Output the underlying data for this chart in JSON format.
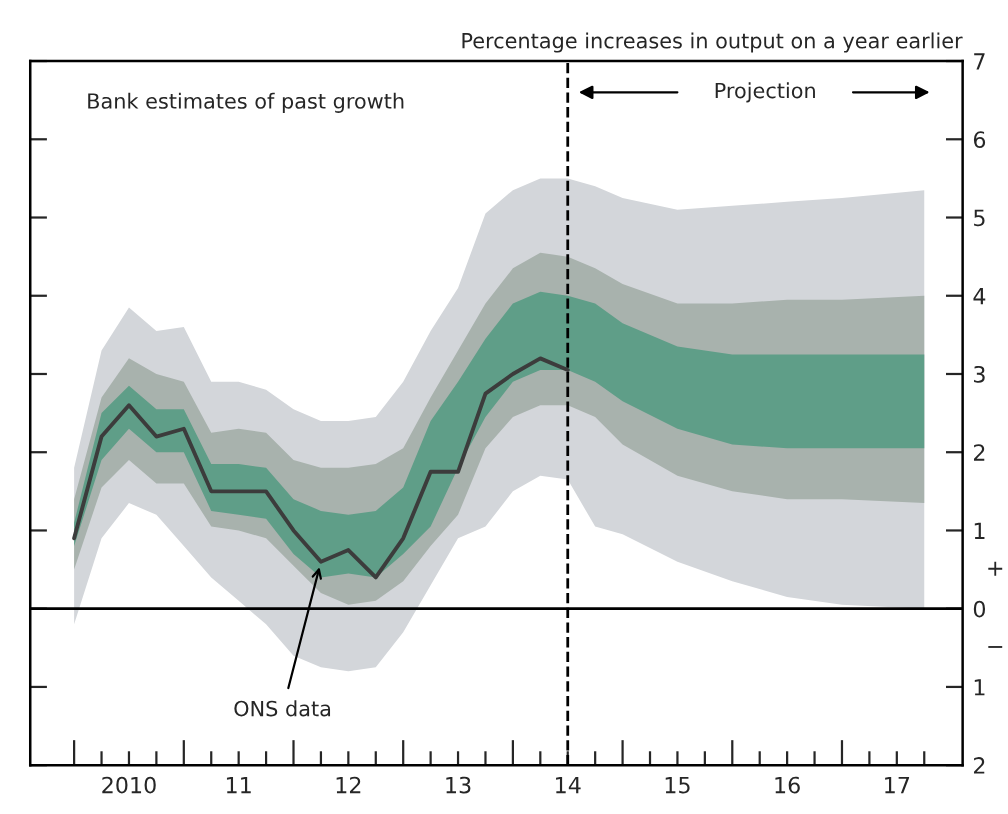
{
  "chart_data": {
    "type": "area",
    "ylabel": "Percentage increases in output on a year earlier",
    "annotations": [
      "Bank estimates of past growth",
      "Projection",
      {
        "text": "ONS data",
        "x": 2011.75,
        "y": 0.6
      },
      "+",
      "−"
    ],
    "xlim": [
      2009.1,
      2017.6
    ],
    "xticks": [
      {
        "value": 2009.5,
        "label": null
      },
      {
        "value": 2009.75,
        "label": null
      },
      2010,
      {
        "value": 2010.25,
        "label": null
      },
      {
        "value": 2010.5,
        "label": null
      },
      {
        "value": 2010.75,
        "label": null
      },
      {
        "value": 2011,
        "label": "11"
      },
      {
        "value": 2011.25,
        "label": null
      },
      {
        "value": 2011.5,
        "label": null
      },
      {
        "value": 2011.75,
        "label": null
      },
      {
        "value": 2012,
        "label": "12"
      },
      {
        "value": 2012.25,
        "label": null
      },
      {
        "value": 2012.5,
        "label": null
      },
      {
        "value": 2012.75,
        "label": null
      },
      {
        "value": 2013,
        "label": "13"
      },
      {
        "value": 2013.25,
        "label": null
      },
      {
        "value": 2013.5,
        "label": null
      },
      {
        "value": 2013.75,
        "label": null
      },
      {
        "value": 2014,
        "label": "14"
      },
      {
        "value": 2014.25,
        "label": null
      },
      {
        "value": 2014.5,
        "label": null
      },
      {
        "value": 2014.75,
        "label": null
      },
      {
        "value": 2015,
        "label": "15"
      },
      {
        "value": 2015.25,
        "label": null
      },
      {
        "value": 2015.5,
        "label": null
      },
      {
        "value": 2015.75,
        "label": null
      },
      {
        "value": 2016,
        "label": "16"
      },
      {
        "value": 2016.25,
        "label": null
      },
      {
        "value": 2016.5,
        "label": null
      },
      {
        "value": 2016.75,
        "label": null
      },
      {
        "value": 2017,
        "label": "17"
      },
      {
        "value": 2017.25,
        "label": null
      }
    ],
    "ylim": [
      -2,
      7
    ],
    "yticks": [
      {
        "value": -2,
        "label": "2"
      },
      {
        "value": -1,
        "label": "1"
      },
      0,
      1,
      2,
      3,
      4,
      5,
      6,
      7
    ],
    "ref_lines": [
      {
        "axis": "y",
        "value": 0,
        "label": null,
        "color": "#000000",
        "line_style": "solid"
      },
      {
        "axis": "x",
        "value": 2014.0,
        "label": null,
        "color": "#000000",
        "line_style": "dashed"
      }
    ],
    "grid": false,
    "legend": false,
    "series": [
      {
        "color": "#d3d6da",
        "x": [
          2009.5,
          2009.75,
          2010.0,
          2010.25,
          2010.5,
          2010.75,
          2011.0,
          2011.25,
          2011.5,
          2011.75,
          2012.0,
          2012.25,
          2012.5,
          2012.75,
          2013.0,
          2013.25,
          2013.5,
          2013.75,
          2014.0,
          2014.25,
          2014.5,
          2015.0,
          2015.5,
          2016.0,
          2016.5,
          2017.25
        ],
        "values": [
          null,
          null,
          null,
          null,
          null,
          null,
          null,
          null,
          null,
          null,
          null,
          null,
          null,
          null,
          null,
          null,
          null,
          null,
          null,
          null,
          null,
          null,
          null,
          null,
          null,
          null
        ],
        "lower": [
          -0.2,
          0.9,
          1.35,
          1.2,
          0.8,
          0.4,
          0.1,
          -0.2,
          -0.6,
          -0.75,
          -0.8,
          -0.75,
          -0.3,
          0.3,
          0.9,
          1.05,
          1.5,
          1.7,
          1.65,
          1.05,
          0.95,
          0.6,
          0.35,
          0.15,
          0.05,
          0.0
        ],
        "upper": [
          1.8,
          3.3,
          3.85,
          3.55,
          3.6,
          2.9,
          2.9,
          2.8,
          2.55,
          2.4,
          2.4,
          2.45,
          2.9,
          3.55,
          4.1,
          5.05,
          5.35,
          5.5,
          5.5,
          5.4,
          5.25,
          5.1,
          5.15,
          5.2,
          5.25,
          5.35
        ]
      },
      {
        "color": "#a8b2ad",
        "x": [
          2009.5,
          2009.75,
          2010.0,
          2010.25,
          2010.5,
          2010.75,
          2011.0,
          2011.25,
          2011.5,
          2011.75,
          2012.0,
          2012.25,
          2012.5,
          2012.75,
          2013.0,
          2013.25,
          2013.5,
          2013.75,
          2014.0,
          2014.25,
          2014.5,
          2015.0,
          2015.5,
          2016.0,
          2016.5,
          2017.25
        ],
        "values": [
          null,
          null,
          null,
          null,
          null,
          null,
          null,
          null,
          null,
          null,
          null,
          null,
          null,
          null,
          null,
          null,
          null,
          null,
          null,
          null,
          null,
          null,
          null,
          null,
          null,
          null
        ],
        "lower": [
          0.5,
          1.55,
          1.9,
          1.6,
          1.6,
          1.05,
          1.0,
          0.9,
          0.55,
          0.2,
          0.05,
          0.1,
          0.35,
          0.8,
          1.2,
          2.05,
          2.45,
          2.6,
          2.6,
          2.45,
          2.1,
          1.7,
          1.5,
          1.4,
          1.4,
          1.35
        ],
        "upper": [
          1.4,
          2.7,
          3.2,
          3.0,
          2.9,
          2.25,
          2.3,
          2.25,
          1.9,
          1.8,
          1.8,
          1.85,
          2.05,
          2.7,
          3.3,
          3.9,
          4.35,
          4.55,
          4.5,
          4.35,
          4.15,
          3.9,
          3.9,
          3.95,
          3.95,
          4.0
        ]
      },
      {
        "color": "#5f9e88",
        "x": [
          2009.5,
          2009.75,
          2010.0,
          2010.25,
          2010.5,
          2010.75,
          2011.0,
          2011.25,
          2011.5,
          2011.75,
          2012.0,
          2012.25,
          2012.5,
          2012.75,
          2013.0,
          2013.25,
          2013.5,
          2013.75,
          2014.0,
          2014.25,
          2014.5,
          2015.0,
          2015.5,
          2016.0,
          2016.5,
          2017.25
        ],
        "values": [
          null,
          null,
          null,
          null,
          null,
          null,
          null,
          null,
          null,
          null,
          null,
          null,
          null,
          null,
          null,
          null,
          null,
          null,
          null,
          null,
          null,
          null,
          null,
          null,
          null,
          null
        ],
        "lower": [
          0.8,
          1.9,
          2.3,
          2.0,
          2.0,
          1.25,
          1.2,
          1.15,
          0.7,
          0.4,
          0.45,
          0.4,
          0.7,
          1.05,
          1.8,
          2.45,
          2.9,
          3.05,
          3.05,
          2.9,
          2.65,
          2.3,
          2.1,
          2.05,
          2.05,
          2.05
        ],
        "upper": [
          1.1,
          2.5,
          2.85,
          2.55,
          2.55,
          1.85,
          1.85,
          1.8,
          1.4,
          1.25,
          1.2,
          1.25,
          1.55,
          2.4,
          2.9,
          3.45,
          3.9,
          4.05,
          4.0,
          3.9,
          3.65,
          3.35,
          3.25,
          3.25,
          3.25,
          3.25
        ]
      },
      {
        "type": "line",
        "color": "#3c3c3c",
        "x": [
          2009.5,
          2009.75,
          2010.0,
          2010.25,
          2010.5,
          2010.75,
          2011.0,
          2011.25,
          2011.5,
          2011.75,
          2012.0,
          2012.25,
          2012.5,
          2012.75,
          2013.0,
          2013.25,
          2013.5,
          2013.75,
          2014.0
        ],
        "values": [
          0.9,
          2.2,
          2.6,
          2.2,
          2.3,
          1.5,
          1.5,
          1.5,
          1.0,
          0.6,
          0.75,
          0.4,
          0.9,
          1.75,
          1.75,
          2.75,
          3.0,
          3.2,
          3.05
        ]
      }
    ],
    "marker": "none",
    "line_style": "solid"
  }
}
